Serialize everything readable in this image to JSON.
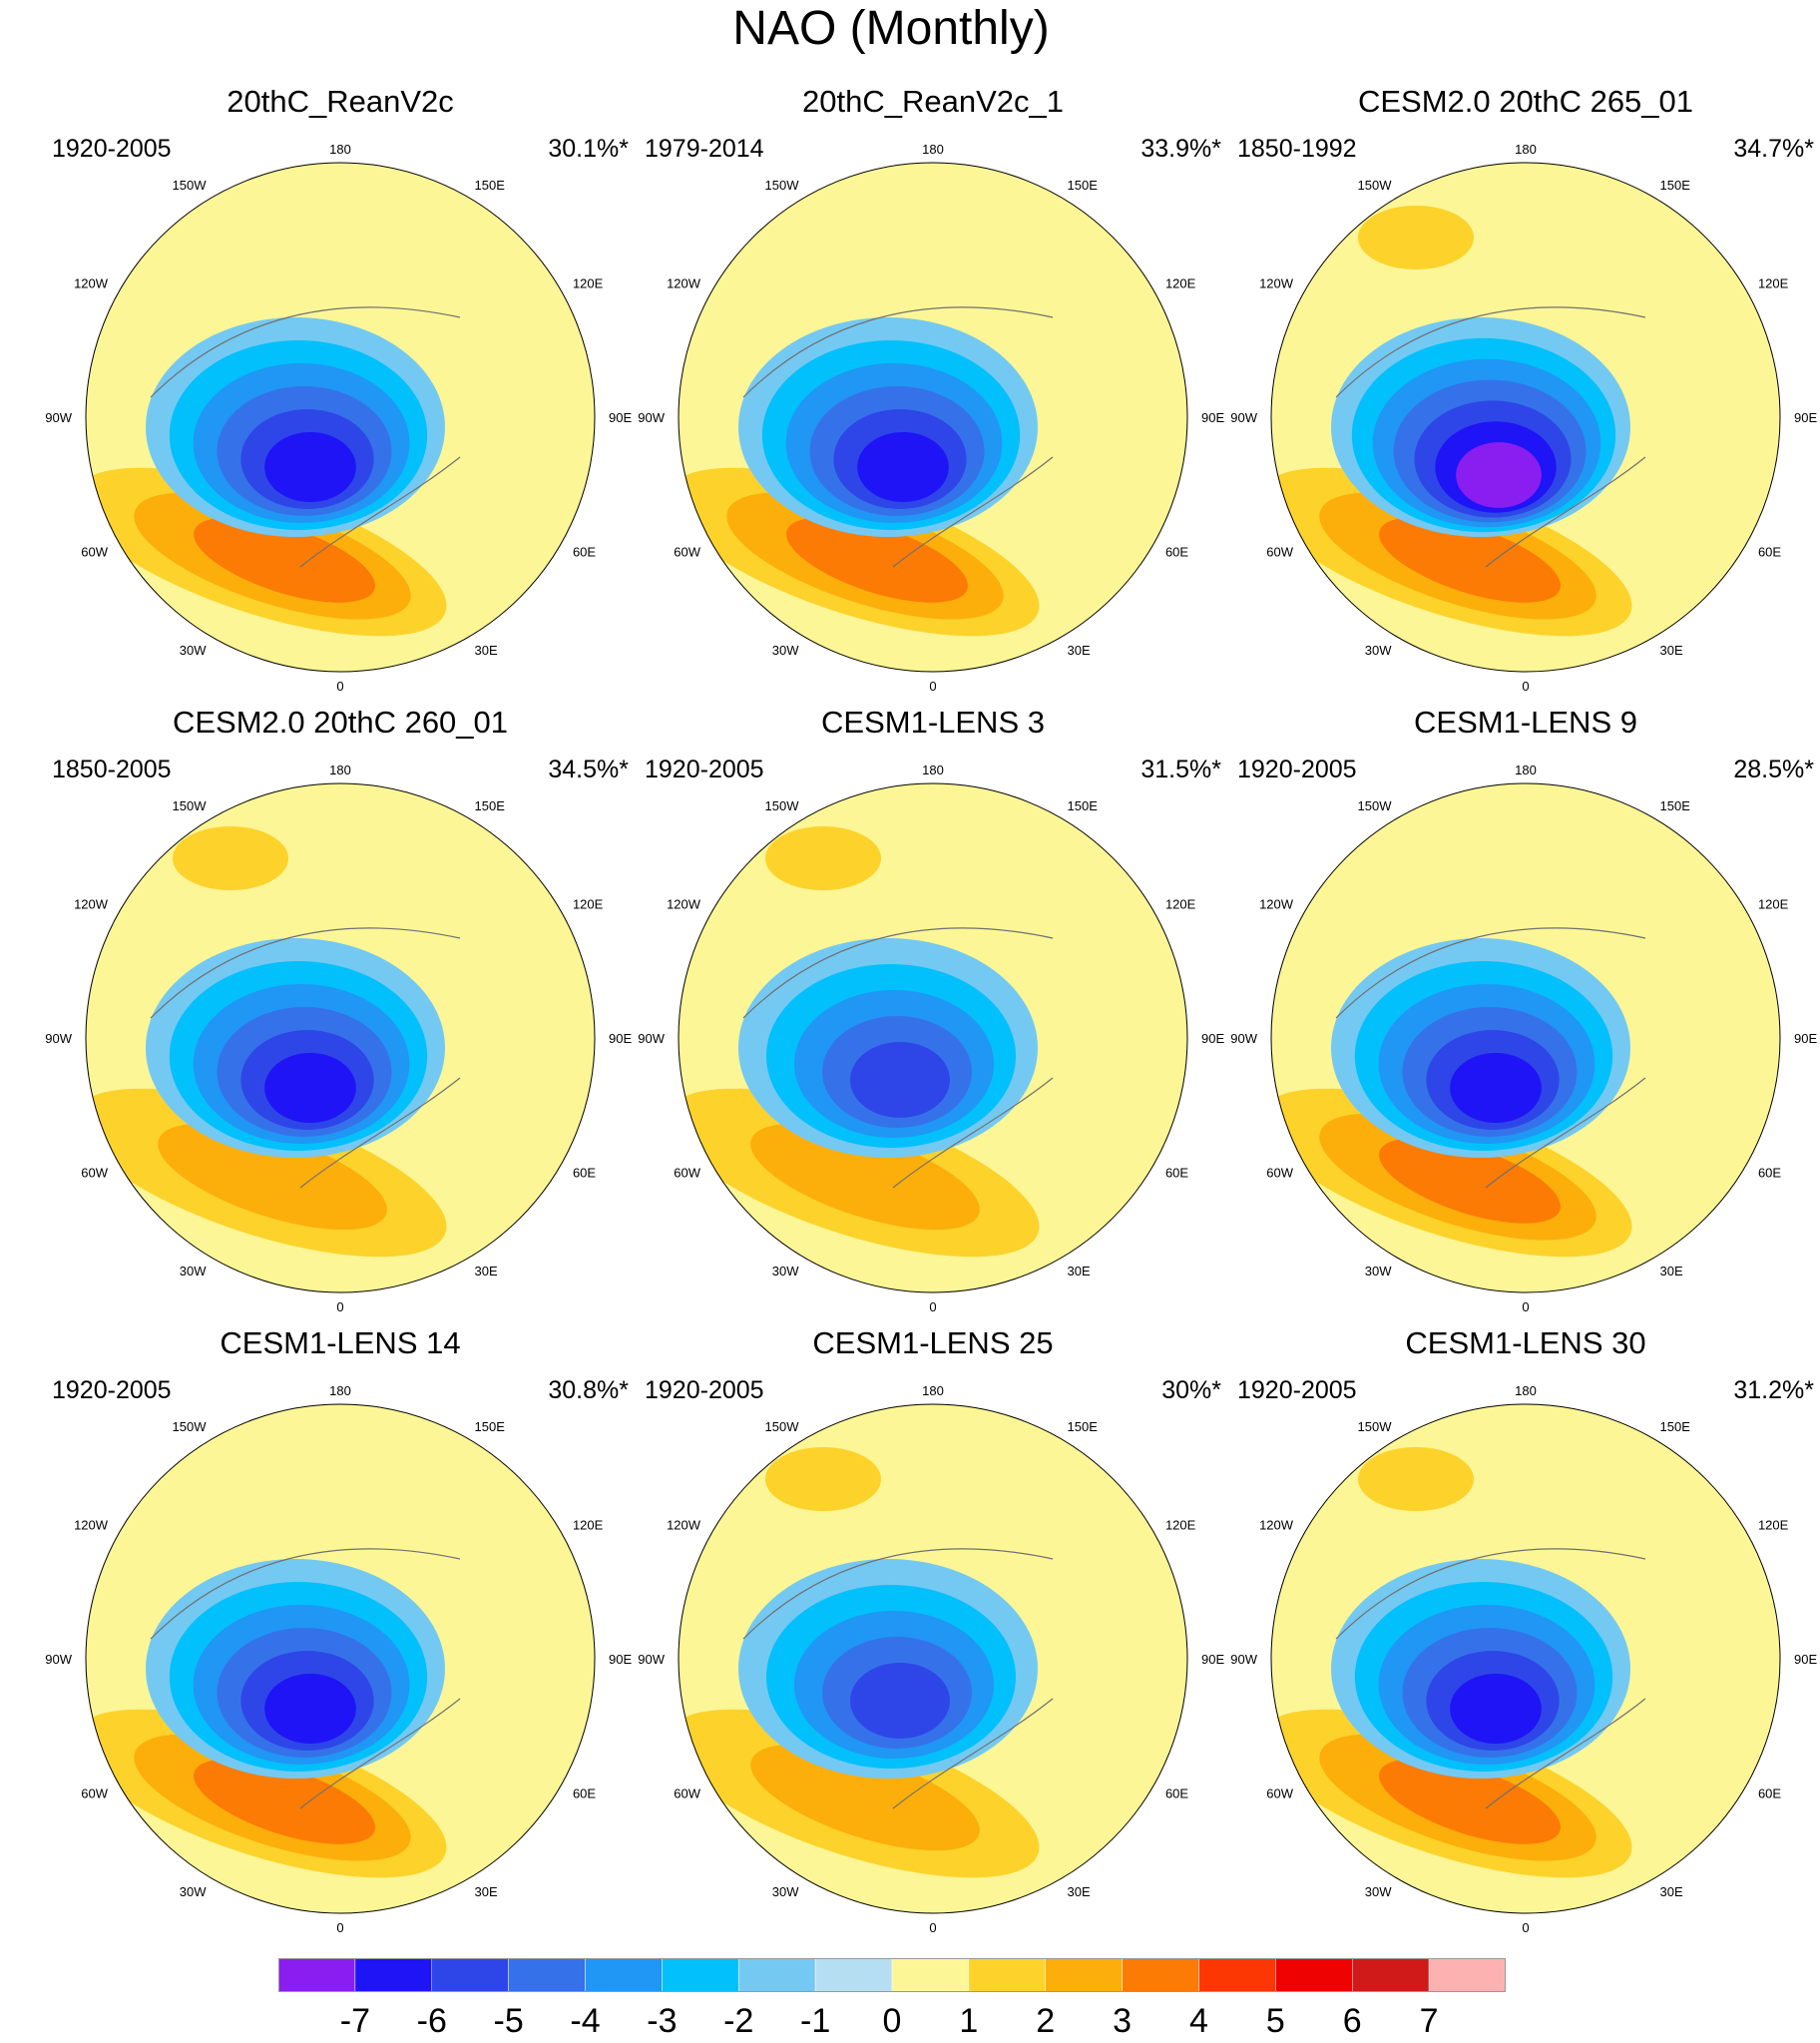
{
  "figure": {
    "title": "NAO (Monthly)"
  },
  "chart_data": {
    "type": "heatmap",
    "title": "NAO (Monthly)",
    "projection": "north polar stereographic",
    "longitude_labels": [
      "180",
      "150W",
      "120W",
      "90W",
      "60W",
      "30W",
      "0",
      "30E",
      "60E",
      "90E",
      "120E",
      "150E"
    ],
    "colorbar": {
      "ticks": [
        "-7",
        "-6",
        "-5",
        "-4",
        "-3",
        "-2",
        "-1",
        "0",
        "1",
        "2",
        "3",
        "4",
        "5",
        "6",
        "7"
      ],
      "colors": [
        "#8a1ef0",
        "#1e14f5",
        "#2e46e8",
        "#3572ea",
        "#2096f5",
        "#02c0fb",
        "#74c9f2",
        "#b5def2",
        "#fcf696",
        "#fdd22b",
        "#fcae0b",
        "#fb7b04",
        "#fd3703",
        "#ee0302",
        "#d01a1a",
        "#fdb2b2"
      ]
    },
    "panels": [
      {
        "title": "20thC_ReanV2c",
        "period": "1920-2005",
        "variance": "30.1%*",
        "pos_min_level": 4,
        "neg_min_level": -6
      },
      {
        "title": "20thC_ReanV2c_1",
        "period": "1979-2014",
        "variance": "33.9%*",
        "pos_min_level": 4,
        "neg_min_level": -6
      },
      {
        "title": "CESM2.0 20thC 265_01",
        "period": "1850-1992",
        "variance": "34.7%*",
        "pos_min_level": 4,
        "neg_min_level": -7
      },
      {
        "title": "CESM2.0 20thC 260_01",
        "period": "1850-2005",
        "variance": "34.5%*",
        "pos_min_level": 3,
        "neg_min_level": -6
      },
      {
        "title": "CESM1-LENS 3",
        "period": "1920-2005",
        "variance": "31.5%*",
        "pos_min_level": 3,
        "neg_min_level": -5
      },
      {
        "title": "CESM1-LENS 9",
        "period": "1920-2005",
        "variance": "28.5%*",
        "pos_min_level": 4,
        "neg_min_level": -6
      },
      {
        "title": "CESM1-LENS 14",
        "period": "1920-2005",
        "variance": "30.8%*",
        "pos_min_level": 4,
        "neg_min_level": -6
      },
      {
        "title": "CESM1-LENS 25",
        "period": "1920-2005",
        "variance": "30%*",
        "pos_min_level": 3,
        "neg_min_level": -5
      },
      {
        "title": "CESM1-LENS 30",
        "period": "1920-2005",
        "variance": "31.2%*",
        "pos_min_level": 4,
        "neg_min_level": -6
      }
    ]
  }
}
